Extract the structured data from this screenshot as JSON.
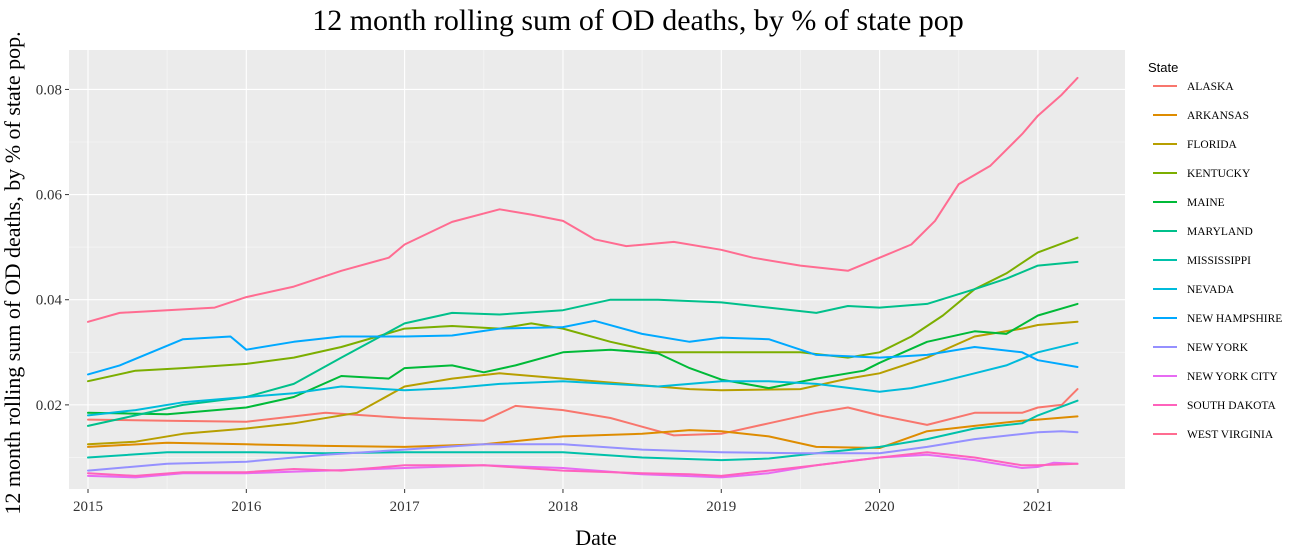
{
  "chart_data": {
    "type": "line",
    "title": "12 month rolling sum of OD deaths, by % of state pop",
    "xlabel": "Date",
    "ylabel": "12 month rolling sum of OD deaths, by % of state pop.",
    "xlim": [
      2014.88,
      2021.55
    ],
    "ylim": [
      0.004,
      0.0875
    ],
    "x_ticks": [
      "2015",
      "2016",
      "2017",
      "2018",
      "2019",
      "2020",
      "2021"
    ],
    "y_ticks": [
      "0.02",
      "0.04",
      "0.06",
      "0.08"
    ],
    "grid": true,
    "legend": {
      "title": "State",
      "position": "right"
    },
    "series": [
      {
        "name": "ALASKA",
        "color": "#F8766D",
        "points": [
          [
            2015,
            0.0172
          ],
          [
            2015.5,
            0.017
          ],
          [
            2016,
            0.0168
          ],
          [
            2016.5,
            0.0185
          ],
          [
            2017,
            0.0175
          ],
          [
            2017.5,
            0.017
          ],
          [
            2017.7,
            0.0198
          ],
          [
            2018,
            0.019
          ],
          [
            2018.3,
            0.0175
          ],
          [
            2018.7,
            0.0142
          ],
          [
            2019,
            0.0145
          ],
          [
            2019.3,
            0.0165
          ],
          [
            2019.6,
            0.0185
          ],
          [
            2019.8,
            0.0195
          ],
          [
            2020,
            0.018
          ],
          [
            2020.3,
            0.0162
          ],
          [
            2020.6,
            0.0185
          ],
          [
            2020.9,
            0.0185
          ],
          [
            2021,
            0.0195
          ],
          [
            2021.15,
            0.02
          ],
          [
            2021.25,
            0.023
          ]
        ]
      },
      {
        "name": "ARKANSAS",
        "color": "#DE8C00",
        "points": [
          [
            2015,
            0.012
          ],
          [
            2015.5,
            0.0128
          ],
          [
            2016,
            0.0125
          ],
          [
            2016.5,
            0.0122
          ],
          [
            2017,
            0.012
          ],
          [
            2017.5,
            0.0125
          ],
          [
            2018,
            0.014
          ],
          [
            2018.5,
            0.0145
          ],
          [
            2018.8,
            0.0152
          ],
          [
            2019,
            0.015
          ],
          [
            2019.3,
            0.014
          ],
          [
            2019.6,
            0.012
          ],
          [
            2020,
            0.0118
          ],
          [
            2020.3,
            0.015
          ],
          [
            2020.6,
            0.016
          ],
          [
            2020.9,
            0.017
          ],
          [
            2021,
            0.0172
          ],
          [
            2021.25,
            0.0178
          ]
        ]
      },
      {
        "name": "FLORIDA",
        "color": "#B79F00",
        "points": [
          [
            2015,
            0.0125
          ],
          [
            2015.3,
            0.013
          ],
          [
            2015.6,
            0.0145
          ],
          [
            2016,
            0.0155
          ],
          [
            2016.3,
            0.0165
          ],
          [
            2016.7,
            0.0185
          ],
          [
            2017,
            0.0235
          ],
          [
            2017.3,
            0.025
          ],
          [
            2017.6,
            0.026
          ],
          [
            2018,
            0.025
          ],
          [
            2018.4,
            0.024
          ],
          [
            2018.8,
            0.023
          ],
          [
            2019,
            0.0228
          ],
          [
            2019.5,
            0.023
          ],
          [
            2019.8,
            0.025
          ],
          [
            2020,
            0.026
          ],
          [
            2020.3,
            0.029
          ],
          [
            2020.6,
            0.033
          ],
          [
            2020.9,
            0.0345
          ],
          [
            2021,
            0.0352
          ],
          [
            2021.25,
            0.0358
          ]
        ]
      },
      {
        "name": "KENTUCKY",
        "color": "#7CAE00",
        "points": [
          [
            2015,
            0.0245
          ],
          [
            2015.3,
            0.0265
          ],
          [
            2015.6,
            0.027
          ],
          [
            2016,
            0.0278
          ],
          [
            2016.3,
            0.029
          ],
          [
            2016.6,
            0.031
          ],
          [
            2017,
            0.0345
          ],
          [
            2017.3,
            0.035
          ],
          [
            2017.6,
            0.0345
          ],
          [
            2017.8,
            0.0355
          ],
          [
            2018,
            0.0345
          ],
          [
            2018.3,
            0.032
          ],
          [
            2018.6,
            0.03
          ],
          [
            2019,
            0.03
          ],
          [
            2019.5,
            0.03
          ],
          [
            2019.8,
            0.029
          ],
          [
            2020,
            0.03
          ],
          [
            2020.2,
            0.033
          ],
          [
            2020.4,
            0.037
          ],
          [
            2020.6,
            0.042
          ],
          [
            2020.8,
            0.045
          ],
          [
            2021,
            0.049
          ],
          [
            2021.25,
            0.0518
          ]
        ]
      },
      {
        "name": "MAINE",
        "color": "#00BA38",
        "points": [
          [
            2015,
            0.0185
          ],
          [
            2015.5,
            0.0182
          ],
          [
            2016,
            0.0195
          ],
          [
            2016.3,
            0.0215
          ],
          [
            2016.6,
            0.0255
          ],
          [
            2016.9,
            0.025
          ],
          [
            2017,
            0.027
          ],
          [
            2017.3,
            0.0275
          ],
          [
            2017.5,
            0.0262
          ],
          [
            2017.7,
            0.0275
          ],
          [
            2018,
            0.03
          ],
          [
            2018.3,
            0.0305
          ],
          [
            2018.6,
            0.0298
          ],
          [
            2018.8,
            0.027
          ],
          [
            2019,
            0.0248
          ],
          [
            2019.3,
            0.0232
          ],
          [
            2019.6,
            0.025
          ],
          [
            2019.9,
            0.0265
          ],
          [
            2020,
            0.028
          ],
          [
            2020.3,
            0.032
          ],
          [
            2020.6,
            0.034
          ],
          [
            2020.8,
            0.0335
          ],
          [
            2021,
            0.037
          ],
          [
            2021.25,
            0.0392
          ]
        ]
      },
      {
        "name": "MARYLAND",
        "color": "#00C08B",
        "points": [
          [
            2015,
            0.016
          ],
          [
            2015.3,
            0.018
          ],
          [
            2015.6,
            0.02
          ],
          [
            2016,
            0.0215
          ],
          [
            2016.3,
            0.024
          ],
          [
            2016.6,
            0.029
          ],
          [
            2017,
            0.0355
          ],
          [
            2017.3,
            0.0375
          ],
          [
            2017.6,
            0.0372
          ],
          [
            2018,
            0.038
          ],
          [
            2018.3,
            0.04
          ],
          [
            2018.6,
            0.04
          ],
          [
            2019,
            0.0395
          ],
          [
            2019.3,
            0.0385
          ],
          [
            2019.6,
            0.0375
          ],
          [
            2019.8,
            0.0388
          ],
          [
            2020,
            0.0385
          ],
          [
            2020.3,
            0.0392
          ],
          [
            2020.6,
            0.042
          ],
          [
            2020.8,
            0.044
          ],
          [
            2021,
            0.0465
          ],
          [
            2021.25,
            0.0472
          ]
        ]
      },
      {
        "name": "MISSISSIPPI",
        "color": "#00C1AA",
        "points": [
          [
            2015,
            0.01
          ],
          [
            2015.5,
            0.011
          ],
          [
            2016,
            0.011
          ],
          [
            2016.5,
            0.0108
          ],
          [
            2017,
            0.011
          ],
          [
            2017.5,
            0.011
          ],
          [
            2018,
            0.011
          ],
          [
            2018.5,
            0.01
          ],
          [
            2019,
            0.0095
          ],
          [
            2019.3,
            0.0098
          ],
          [
            2019.6,
            0.0108
          ],
          [
            2020,
            0.012
          ],
          [
            2020.3,
            0.0135
          ],
          [
            2020.6,
            0.0155
          ],
          [
            2020.9,
            0.0165
          ],
          [
            2021,
            0.018
          ],
          [
            2021.25,
            0.0208
          ]
        ]
      },
      {
        "name": "NEVADA",
        "color": "#00BBDB",
        "points": [
          [
            2015,
            0.018
          ],
          [
            2015.3,
            0.019
          ],
          [
            2015.6,
            0.0205
          ],
          [
            2016,
            0.0215
          ],
          [
            2016.3,
            0.0222
          ],
          [
            2016.6,
            0.0235
          ],
          [
            2017,
            0.0228
          ],
          [
            2017.3,
            0.0232
          ],
          [
            2017.6,
            0.024
          ],
          [
            2018,
            0.0245
          ],
          [
            2018.3,
            0.024
          ],
          [
            2018.6,
            0.0235
          ],
          [
            2019,
            0.0245
          ],
          [
            2019.3,
            0.0245
          ],
          [
            2019.6,
            0.024
          ],
          [
            2020,
            0.0225
          ],
          [
            2020.2,
            0.0232
          ],
          [
            2020.4,
            0.0245
          ],
          [
            2020.6,
            0.026
          ],
          [
            2020.8,
            0.0275
          ],
          [
            2021,
            0.03
          ],
          [
            2021.25,
            0.0318
          ]
        ]
      },
      {
        "name": "NEW HAMPSHIRE",
        "color": "#00A9FF",
        "points": [
          [
            2015,
            0.0258
          ],
          [
            2015.2,
            0.0275
          ],
          [
            2015.4,
            0.03
          ],
          [
            2015.6,
            0.0325
          ],
          [
            2015.9,
            0.033
          ],
          [
            2016,
            0.0305
          ],
          [
            2016.3,
            0.032
          ],
          [
            2016.6,
            0.033
          ],
          [
            2017,
            0.033
          ],
          [
            2017.3,
            0.0332
          ],
          [
            2017.6,
            0.0345
          ],
          [
            2018,
            0.0348
          ],
          [
            2018.2,
            0.036
          ],
          [
            2018.5,
            0.0335
          ],
          [
            2018.8,
            0.032
          ],
          [
            2019,
            0.0328
          ],
          [
            2019.3,
            0.0325
          ],
          [
            2019.6,
            0.0295
          ],
          [
            2020,
            0.029
          ],
          [
            2020.3,
            0.0295
          ],
          [
            2020.6,
            0.031
          ],
          [
            2020.9,
            0.03
          ],
          [
            2021,
            0.0285
          ],
          [
            2021.25,
            0.0272
          ]
        ]
      },
      {
        "name": "NEW YORK",
        "color": "#9590FF",
        "points": [
          [
            2015,
            0.0075
          ],
          [
            2015.5,
            0.0088
          ],
          [
            2016,
            0.0092
          ],
          [
            2016.5,
            0.0105
          ],
          [
            2017,
            0.0115
          ],
          [
            2017.5,
            0.0125
          ],
          [
            2018,
            0.0125
          ],
          [
            2018.5,
            0.0115
          ],
          [
            2019,
            0.011
          ],
          [
            2019.5,
            0.0108
          ],
          [
            2020,
            0.0108
          ],
          [
            2020.3,
            0.012
          ],
          [
            2020.6,
            0.0135
          ],
          [
            2021,
            0.0148
          ],
          [
            2021.15,
            0.015
          ],
          [
            2021.25,
            0.0148
          ]
        ]
      },
      {
        "name": "NEW YORK CITY",
        "color": "#E76BF3",
        "points": [
          [
            2015,
            0.0065
          ],
          [
            2015.3,
            0.0062
          ],
          [
            2015.6,
            0.007
          ],
          [
            2016,
            0.007
          ],
          [
            2016.5,
            0.0075
          ],
          [
            2017,
            0.008
          ],
          [
            2017.5,
            0.0085
          ],
          [
            2018,
            0.008
          ],
          [
            2018.5,
            0.0068
          ],
          [
            2019,
            0.0062
          ],
          [
            2019.3,
            0.007
          ],
          [
            2019.6,
            0.0085
          ],
          [
            2020,
            0.01
          ],
          [
            2020.3,
            0.0105
          ],
          [
            2020.6,
            0.0095
          ],
          [
            2020.9,
            0.008
          ],
          [
            2021,
            0.0082
          ],
          [
            2021.1,
            0.009
          ],
          [
            2021.25,
            0.0088
          ]
        ]
      },
      {
        "name": "SOUTH DAKOTA",
        "color": "#FF62BC",
        "points": [
          [
            2015,
            0.007
          ],
          [
            2015.3,
            0.0065
          ],
          [
            2015.6,
            0.0072
          ],
          [
            2016,
            0.0072
          ],
          [
            2016.3,
            0.0078
          ],
          [
            2016.6,
            0.0075
          ],
          [
            2017,
            0.0085
          ],
          [
            2017.5,
            0.0085
          ],
          [
            2018,
            0.0075
          ],
          [
            2018.5,
            0.007
          ],
          [
            2018.8,
            0.0068
          ],
          [
            2019,
            0.0065
          ],
          [
            2019.3,
            0.0075
          ],
          [
            2019.6,
            0.0085
          ],
          [
            2020,
            0.01
          ],
          [
            2020.3,
            0.011
          ],
          [
            2020.6,
            0.01
          ],
          [
            2020.9,
            0.0085
          ],
          [
            2021,
            0.0085
          ],
          [
            2021.25,
            0.0088
          ]
        ]
      },
      {
        "name": "WEST VIRGINIA",
        "color": "#FF6C91",
        "points": [
          [
            2015,
            0.0358
          ],
          [
            2015.2,
            0.0375
          ],
          [
            2015.5,
            0.038
          ],
          [
            2015.8,
            0.0385
          ],
          [
            2016,
            0.0405
          ],
          [
            2016.3,
            0.0425
          ],
          [
            2016.6,
            0.0455
          ],
          [
            2016.9,
            0.048
          ],
          [
            2017,
            0.0505
          ],
          [
            2017.3,
            0.0548
          ],
          [
            2017.6,
            0.0572
          ],
          [
            2017.8,
            0.0562
          ],
          [
            2018,
            0.055
          ],
          [
            2018.2,
            0.0515
          ],
          [
            2018.4,
            0.0502
          ],
          [
            2018.7,
            0.051
          ],
          [
            2019,
            0.0495
          ],
          [
            2019.2,
            0.048
          ],
          [
            2019.5,
            0.0465
          ],
          [
            2019.8,
            0.0455
          ],
          [
            2020,
            0.048
          ],
          [
            2020.2,
            0.0505
          ],
          [
            2020.35,
            0.055
          ],
          [
            2020.5,
            0.062
          ],
          [
            2020.7,
            0.0655
          ],
          [
            2020.9,
            0.0715
          ],
          [
            2021,
            0.075
          ],
          [
            2021.15,
            0.079
          ],
          [
            2021.25,
            0.0822
          ]
        ]
      }
    ]
  }
}
